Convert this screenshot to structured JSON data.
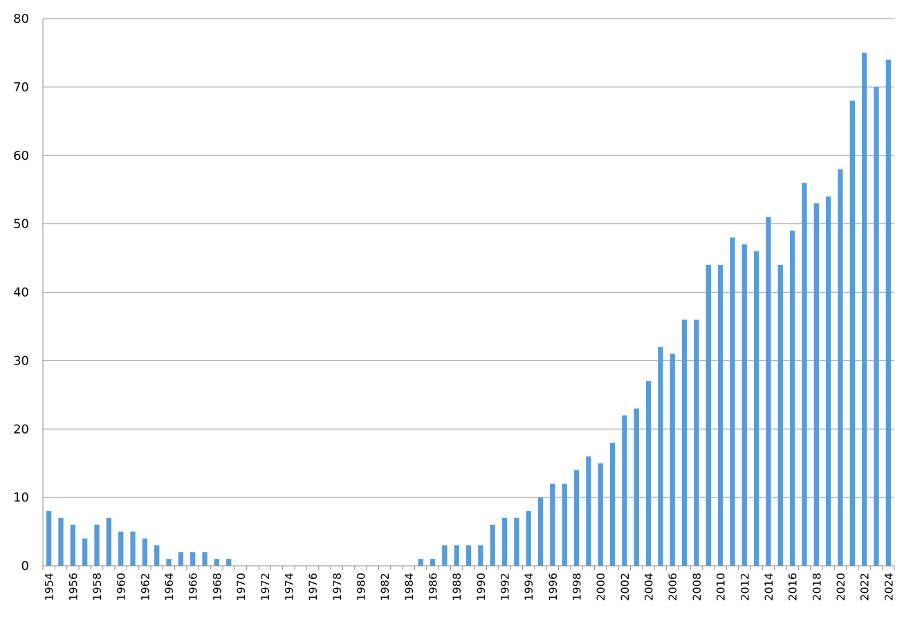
{
  "chart_data": {
    "type": "bar",
    "title": "",
    "xlabel": "",
    "ylabel": "",
    "ylim": [
      0,
      80
    ],
    "yticks": [
      0,
      10,
      20,
      30,
      40,
      50,
      60,
      70,
      80
    ],
    "grid": true,
    "legend": "none",
    "bar_color": "#5B9BD5",
    "categories": [
      "1954",
      "1955",
      "1956",
      "1957",
      "1958",
      "1959",
      "1960",
      "1961",
      "1962",
      "1963",
      "1964",
      "1965",
      "1966",
      "1967",
      "1968",
      "1969",
      "1970",
      "1971",
      "1972",
      "1973",
      "1974",
      "1975",
      "1976",
      "1977",
      "1978",
      "1979",
      "1980",
      "1981",
      "1982",
      "1983",
      "1984",
      "1985",
      "1986",
      "1987",
      "1988",
      "1989",
      "1990",
      "1991",
      "1992",
      "1993",
      "1994",
      "1995",
      "1996",
      "1997",
      "1998",
      "1999",
      "2000",
      "2001",
      "2002",
      "2003",
      "2004",
      "2005",
      "2006",
      "2007",
      "2008",
      "2009",
      "2010",
      "2011",
      "2012",
      "2013",
      "2014",
      "2015",
      "2016",
      "2017",
      "2018",
      "2019",
      "2020",
      "2021",
      "2022",
      "2023",
      "2024"
    ],
    "tick_labels": [
      "1954",
      "1956",
      "1958",
      "1960",
      "1962",
      "1964",
      "1966",
      "1968",
      "1970",
      "1972",
      "1974",
      "1976",
      "1978",
      "1980",
      "1982",
      "1984",
      "1986",
      "1988",
      "1990",
      "1992",
      "1994",
      "1996",
      "1998",
      "2000",
      "2002",
      "2004",
      "2006",
      "2008",
      "2010",
      "2012",
      "2014",
      "2016",
      "2018",
      "2020",
      "2022",
      "2024"
    ],
    "values": [
      8,
      7,
      6,
      4,
      6,
      7,
      5,
      5,
      4,
      3,
      1,
      2,
      2,
      2,
      1,
      1,
      0,
      0,
      0,
      0,
      0,
      0,
      0,
      0,
      0,
      0,
      0,
      0,
      0,
      0,
      0,
      1,
      1,
      3,
      3,
      3,
      3,
      6,
      7,
      7,
      8,
      10,
      12,
      12,
      14,
      16,
      15,
      18,
      22,
      23,
      27,
      32,
      31,
      36,
      36,
      44,
      44,
      48,
      47,
      46,
      51,
      44,
      49,
      56,
      53,
      54,
      58,
      68,
      75,
      70,
      74
    ]
  }
}
